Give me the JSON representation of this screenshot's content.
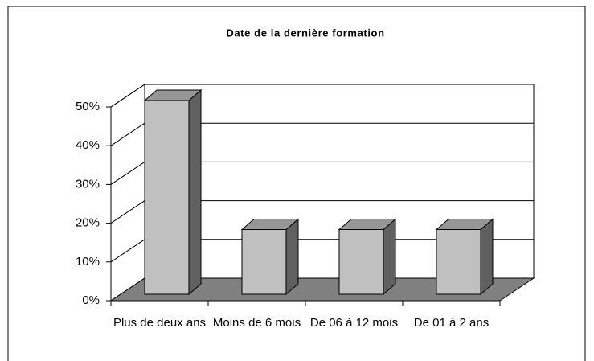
{
  "chart_data": {
    "type": "bar3d",
    "title": "Date de la dernière formation",
    "categories": [
      "Plus de deux ans",
      "Moins de 6 mois",
      "De 06 à 12 mois",
      "De 01 à 2 ans"
    ],
    "values": [
      50,
      16.7,
      16.7,
      16.7
    ],
    "color": "#c0c0c0",
    "ylim": [
      0,
      50
    ],
    "yticks": [
      {
        "value": 0,
        "label": "0%"
      },
      {
        "value": 10,
        "label": "10%"
      },
      {
        "value": 20,
        "label": "20%"
      },
      {
        "value": 30,
        "label": "30%"
      },
      {
        "value": 40,
        "label": "40%"
      },
      {
        "value": 50,
        "label": "50%"
      }
    ],
    "grid": true
  }
}
